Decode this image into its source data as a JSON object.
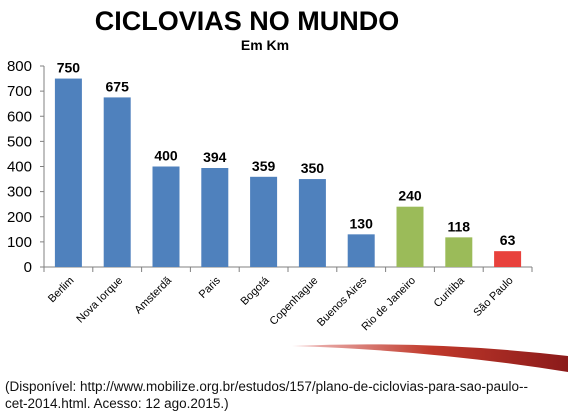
{
  "chart_data": {
    "type": "bar",
    "title": "CICLOVIAS  NO MUNDO",
    "subtitle": "Em Km",
    "categories": [
      "Berlim",
      "Nova Iorque",
      "Amsterdã",
      "Paris",
      "Bogotá",
      "Copenhague",
      "Buenos Aires",
      "Rio de Janeiro",
      "Curitiba",
      "São Paulo"
    ],
    "values": [
      750,
      675,
      400,
      394,
      359,
      350,
      130,
      240,
      118,
      63
    ],
    "value_labels": [
      "750",
      "675",
      "400",
      "394",
      "359",
      "350",
      "130",
      "240",
      "118",
      "63"
    ],
    "colors": [
      "#4f81bd",
      "#4f81bd",
      "#4f81bd",
      "#4f81bd",
      "#4f81bd",
      "#4f81bd",
      "#4f81bd",
      "#9bbb59",
      "#9bbb59",
      "#e8413c"
    ],
    "ylim": [
      0,
      800
    ],
    "yticks": [
      "0",
      "100",
      "200",
      "300",
      "400",
      "500",
      "600",
      "700",
      "800"
    ],
    "ytick_values": [
      0,
      100,
      200,
      300,
      400,
      500,
      600,
      700,
      800
    ],
    "grid": false,
    "legend": "none"
  },
  "source": {
    "line1": "(Disponível: http://www.mobilize.org.br/estudos/157/plano-de-ciclovias-para-sao-paulo--",
    "line2": "cet-2014.html. Acesso: 12   ago.2015.)"
  },
  "colors": {
    "swoosh_dark": "#8b1a1a",
    "swoosh_light": "#e8a0a0"
  }
}
